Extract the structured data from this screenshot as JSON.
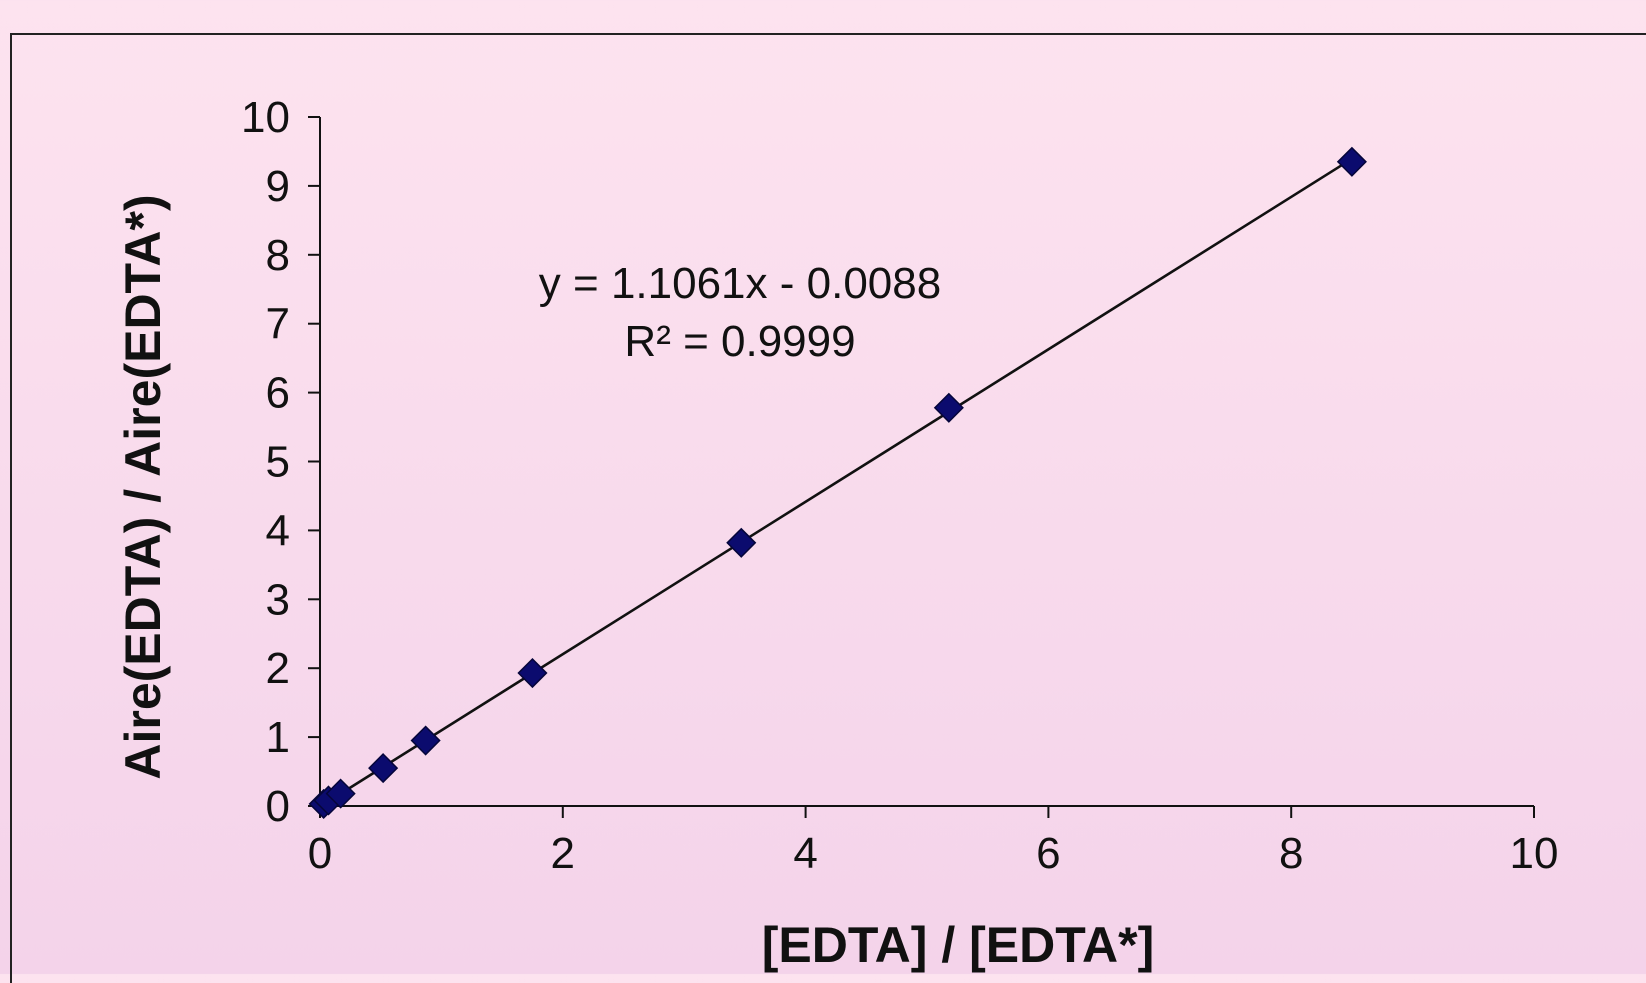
{
  "chart_data": {
    "type": "scatter",
    "xlabel": "[EDTA] / [EDTA*]",
    "ylabel": "Aire(EDTA) / Aire(EDTA*)",
    "xlim": [
      0,
      10
    ],
    "ylim": [
      0,
      10
    ],
    "x_ticks": [
      "0",
      "2",
      "4",
      "6",
      "8",
      "10"
    ],
    "y_ticks": [
      "0",
      "1",
      "2",
      "3",
      "4",
      "5",
      "6",
      "7",
      "8",
      "9",
      "10"
    ],
    "grid": false,
    "legend": "none",
    "series": [
      {
        "color": "#0b0b6e",
        "marker": "diamond",
        "points": [
          {
            "x": 0.03,
            "y": 0.03
          },
          {
            "x": 0.07,
            "y": 0.08
          },
          {
            "x": 0.17,
            "y": 0.18
          },
          {
            "x": 0.52,
            "y": 0.55
          },
          {
            "x": 0.87,
            "y": 0.95
          },
          {
            "x": 1.75,
            "y": 1.93
          },
          {
            "x": 3.47,
            "y": 3.82
          },
          {
            "x": 5.18,
            "y": 5.78
          },
          {
            "x": 8.5,
            "y": 9.35
          }
        ]
      }
    ],
    "trendline": {
      "slope": 1.1061,
      "intercept": -0.0088,
      "x_range": [
        0,
        8.5
      ],
      "color": "#111111"
    },
    "annotations": {
      "equation": "y = 1.1061x - 0.0088",
      "r_squared": "R² = 0.9999"
    }
  }
}
